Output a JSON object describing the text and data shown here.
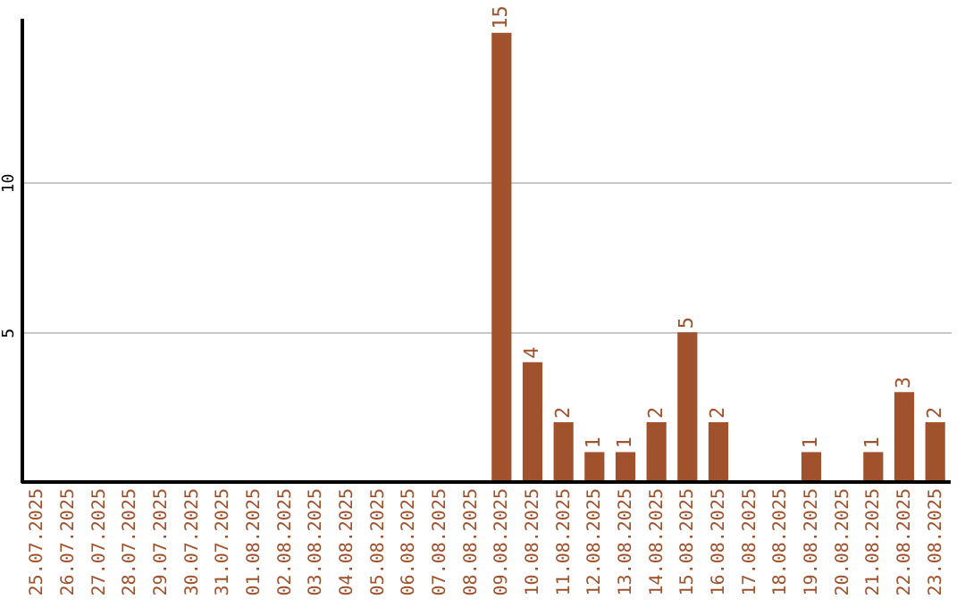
{
  "chart_data": {
    "type": "bar",
    "categories": [
      "25.07.2025",
      "26.07.2025",
      "27.07.2025",
      "28.07.2025",
      "29.07.2025",
      "30.07.2025",
      "31.07.2025",
      "01.08.2025",
      "02.08.2025",
      "03.08.2025",
      "04.08.2025",
      "05.08.2025",
      "06.08.2025",
      "07.08.2025",
      "08.08.2025",
      "09.08.2025",
      "10.08.2025",
      "11.08.2025",
      "12.08.2025",
      "13.08.2025",
      "14.08.2025",
      "15.08.2025",
      "16.08.2025",
      "17.08.2025",
      "18.08.2025",
      "19.08.2025",
      "20.08.2025",
      "21.08.2025",
      "22.08.2025",
      "23.08.2025"
    ],
    "values": [
      0,
      0,
      0,
      0,
      0,
      0,
      0,
      0,
      0,
      0,
      0,
      0,
      0,
      0,
      0,
      15,
      4,
      2,
      1,
      1,
      2,
      5,
      2,
      0,
      0,
      1,
      0,
      1,
      3,
      2
    ],
    "value_labels": [
      null,
      null,
      null,
      null,
      null,
      null,
      null,
      null,
      null,
      null,
      null,
      null,
      null,
      null,
      null,
      "15",
      "4",
      "2",
      "1",
      "1",
      "2",
      "5",
      "2",
      null,
      null,
      "1",
      null,
      "1",
      "3",
      "2"
    ],
    "color": "#a0522d",
    "ylim": [
      0,
      15.5
    ],
    "yticks": [
      5,
      10
    ],
    "grid": "y"
  }
}
